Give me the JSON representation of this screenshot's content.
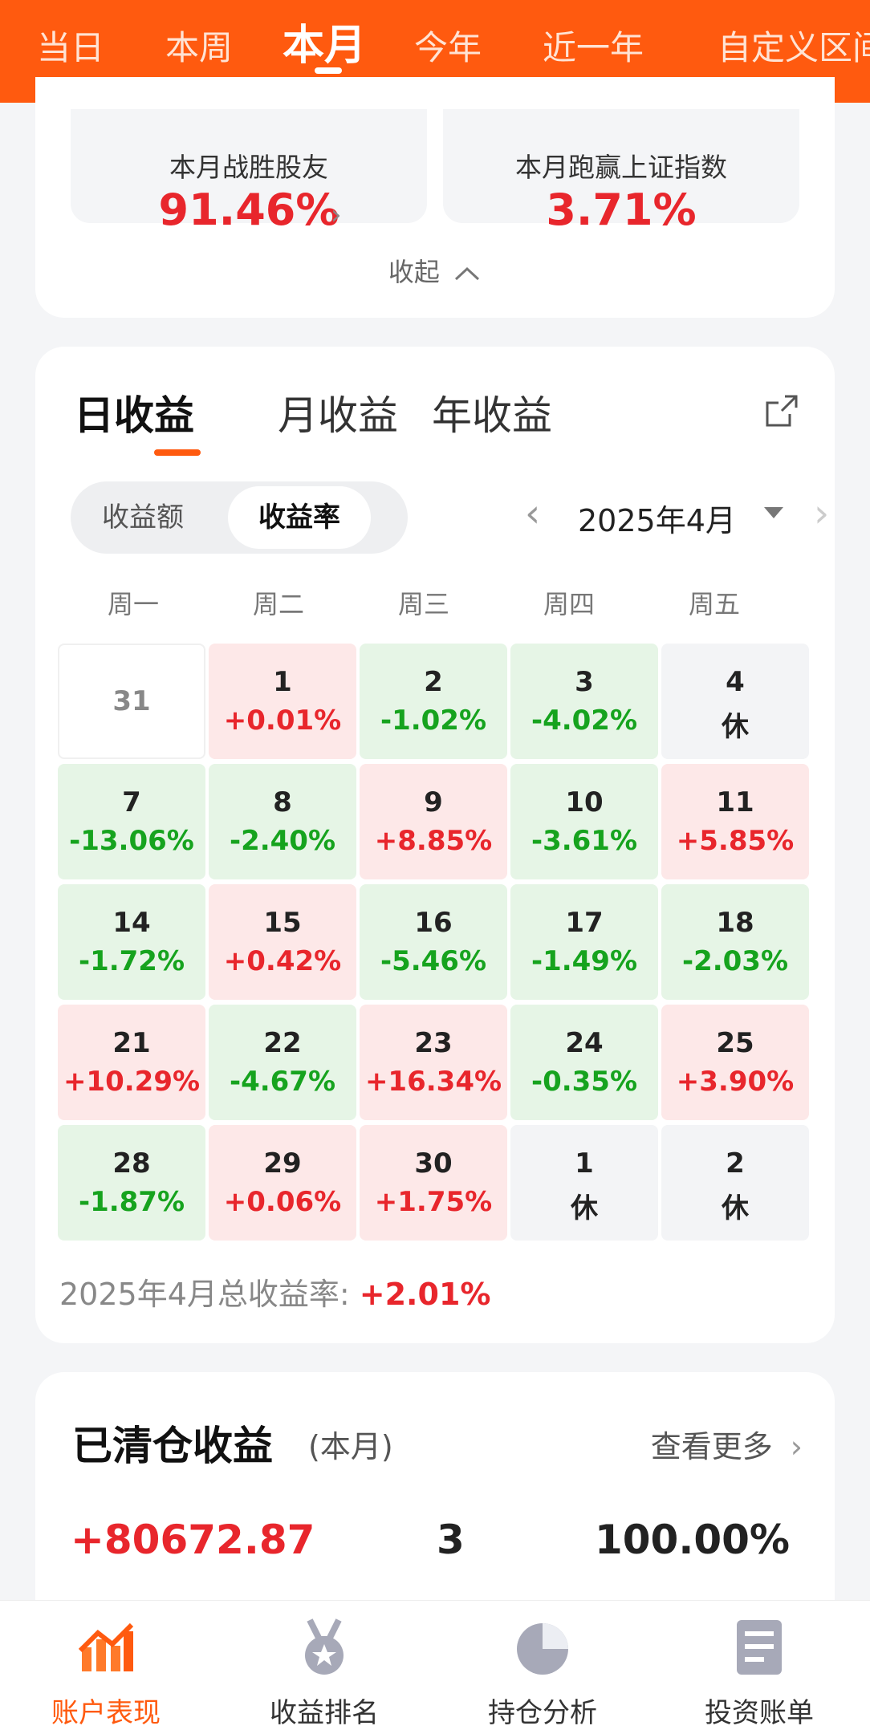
{
  "top_tabs": [
    {
      "label": "当日"
    },
    {
      "label": "本周"
    },
    {
      "label": "本月",
      "active": true
    },
    {
      "label": "今年"
    },
    {
      "label": "近一年"
    },
    {
      "label": "自定义区间"
    }
  ],
  "stats": {
    "beat_friends_label": "本月战胜股友",
    "beat_friends_value": "91.46%",
    "beat_index_label": "本月跑赢上证指数",
    "beat_index_value": "3.71%",
    "collapse_label": "收起"
  },
  "returns": {
    "tabs": [
      "日收益",
      "月收益",
      "年收益"
    ],
    "active_tab": "日收益",
    "segment": [
      "收益额",
      "收益率"
    ],
    "segment_active": "收益率",
    "month_label": "2025年4月",
    "weekdays": [
      "周一",
      "周二",
      "周三",
      "周四",
      "周五"
    ],
    "rows": [
      [
        {
          "day": "31",
          "state": "out"
        },
        {
          "day": "1",
          "pct": "+0.01%",
          "state": "up"
        },
        {
          "day": "2",
          "pct": "-1.02%",
          "state": "down"
        },
        {
          "day": "3",
          "pct": "-4.02%",
          "state": "down"
        },
        {
          "day": "4",
          "pct": "休",
          "state": "rest"
        }
      ],
      [
        {
          "day": "7",
          "pct": "-13.06%",
          "state": "down"
        },
        {
          "day": "8",
          "pct": "-2.40%",
          "state": "down"
        },
        {
          "day": "9",
          "pct": "+8.85%",
          "state": "up"
        },
        {
          "day": "10",
          "pct": "-3.61%",
          "state": "down"
        },
        {
          "day": "11",
          "pct": "+5.85%",
          "state": "up"
        }
      ],
      [
        {
          "day": "14",
          "pct": "-1.72%",
          "state": "down"
        },
        {
          "day": "15",
          "pct": "+0.42%",
          "state": "up"
        },
        {
          "day": "16",
          "pct": "-5.46%",
          "state": "down"
        },
        {
          "day": "17",
          "pct": "-1.49%",
          "state": "down"
        },
        {
          "day": "18",
          "pct": "-2.03%",
          "state": "down"
        }
      ],
      [
        {
          "day": "21",
          "pct": "+10.29%",
          "state": "up"
        },
        {
          "day": "22",
          "pct": "-4.67%",
          "state": "down"
        },
        {
          "day": "23",
          "pct": "+16.34%",
          "state": "up"
        },
        {
          "day": "24",
          "pct": "-0.35%",
          "state": "down"
        },
        {
          "day": "25",
          "pct": "+3.90%",
          "state": "up"
        }
      ],
      [
        {
          "day": "28",
          "pct": "-1.87%",
          "state": "down"
        },
        {
          "day": "29",
          "pct": "+0.06%",
          "state": "up"
        },
        {
          "day": "30",
          "pct": "+1.75%",
          "state": "up"
        },
        {
          "day": "1",
          "pct": "休",
          "state": "rest"
        },
        {
          "day": "2",
          "pct": "休",
          "state": "rest"
        }
      ]
    ],
    "summary_label": "2025年4月总收益率: ",
    "summary_value": "+2.01%"
  },
  "cleared": {
    "title": "已清仓收益",
    "subtitle": "(本月)",
    "more_label": "查看更多",
    "profit": "+80672.87",
    "count": "3",
    "ratio": "100.00%"
  },
  "bottom_nav": [
    {
      "label": "账户表现",
      "icon": "chart-trend-icon",
      "active": true
    },
    {
      "label": "收益排名",
      "icon": "medal-icon"
    },
    {
      "label": "持仓分析",
      "icon": "pie-chart-icon"
    },
    {
      "label": "投资账单",
      "icon": "bill-icon"
    }
  ],
  "colors": {
    "brand": "#ff5a0f",
    "up": "#e8262c",
    "down": "#16a31e"
  }
}
